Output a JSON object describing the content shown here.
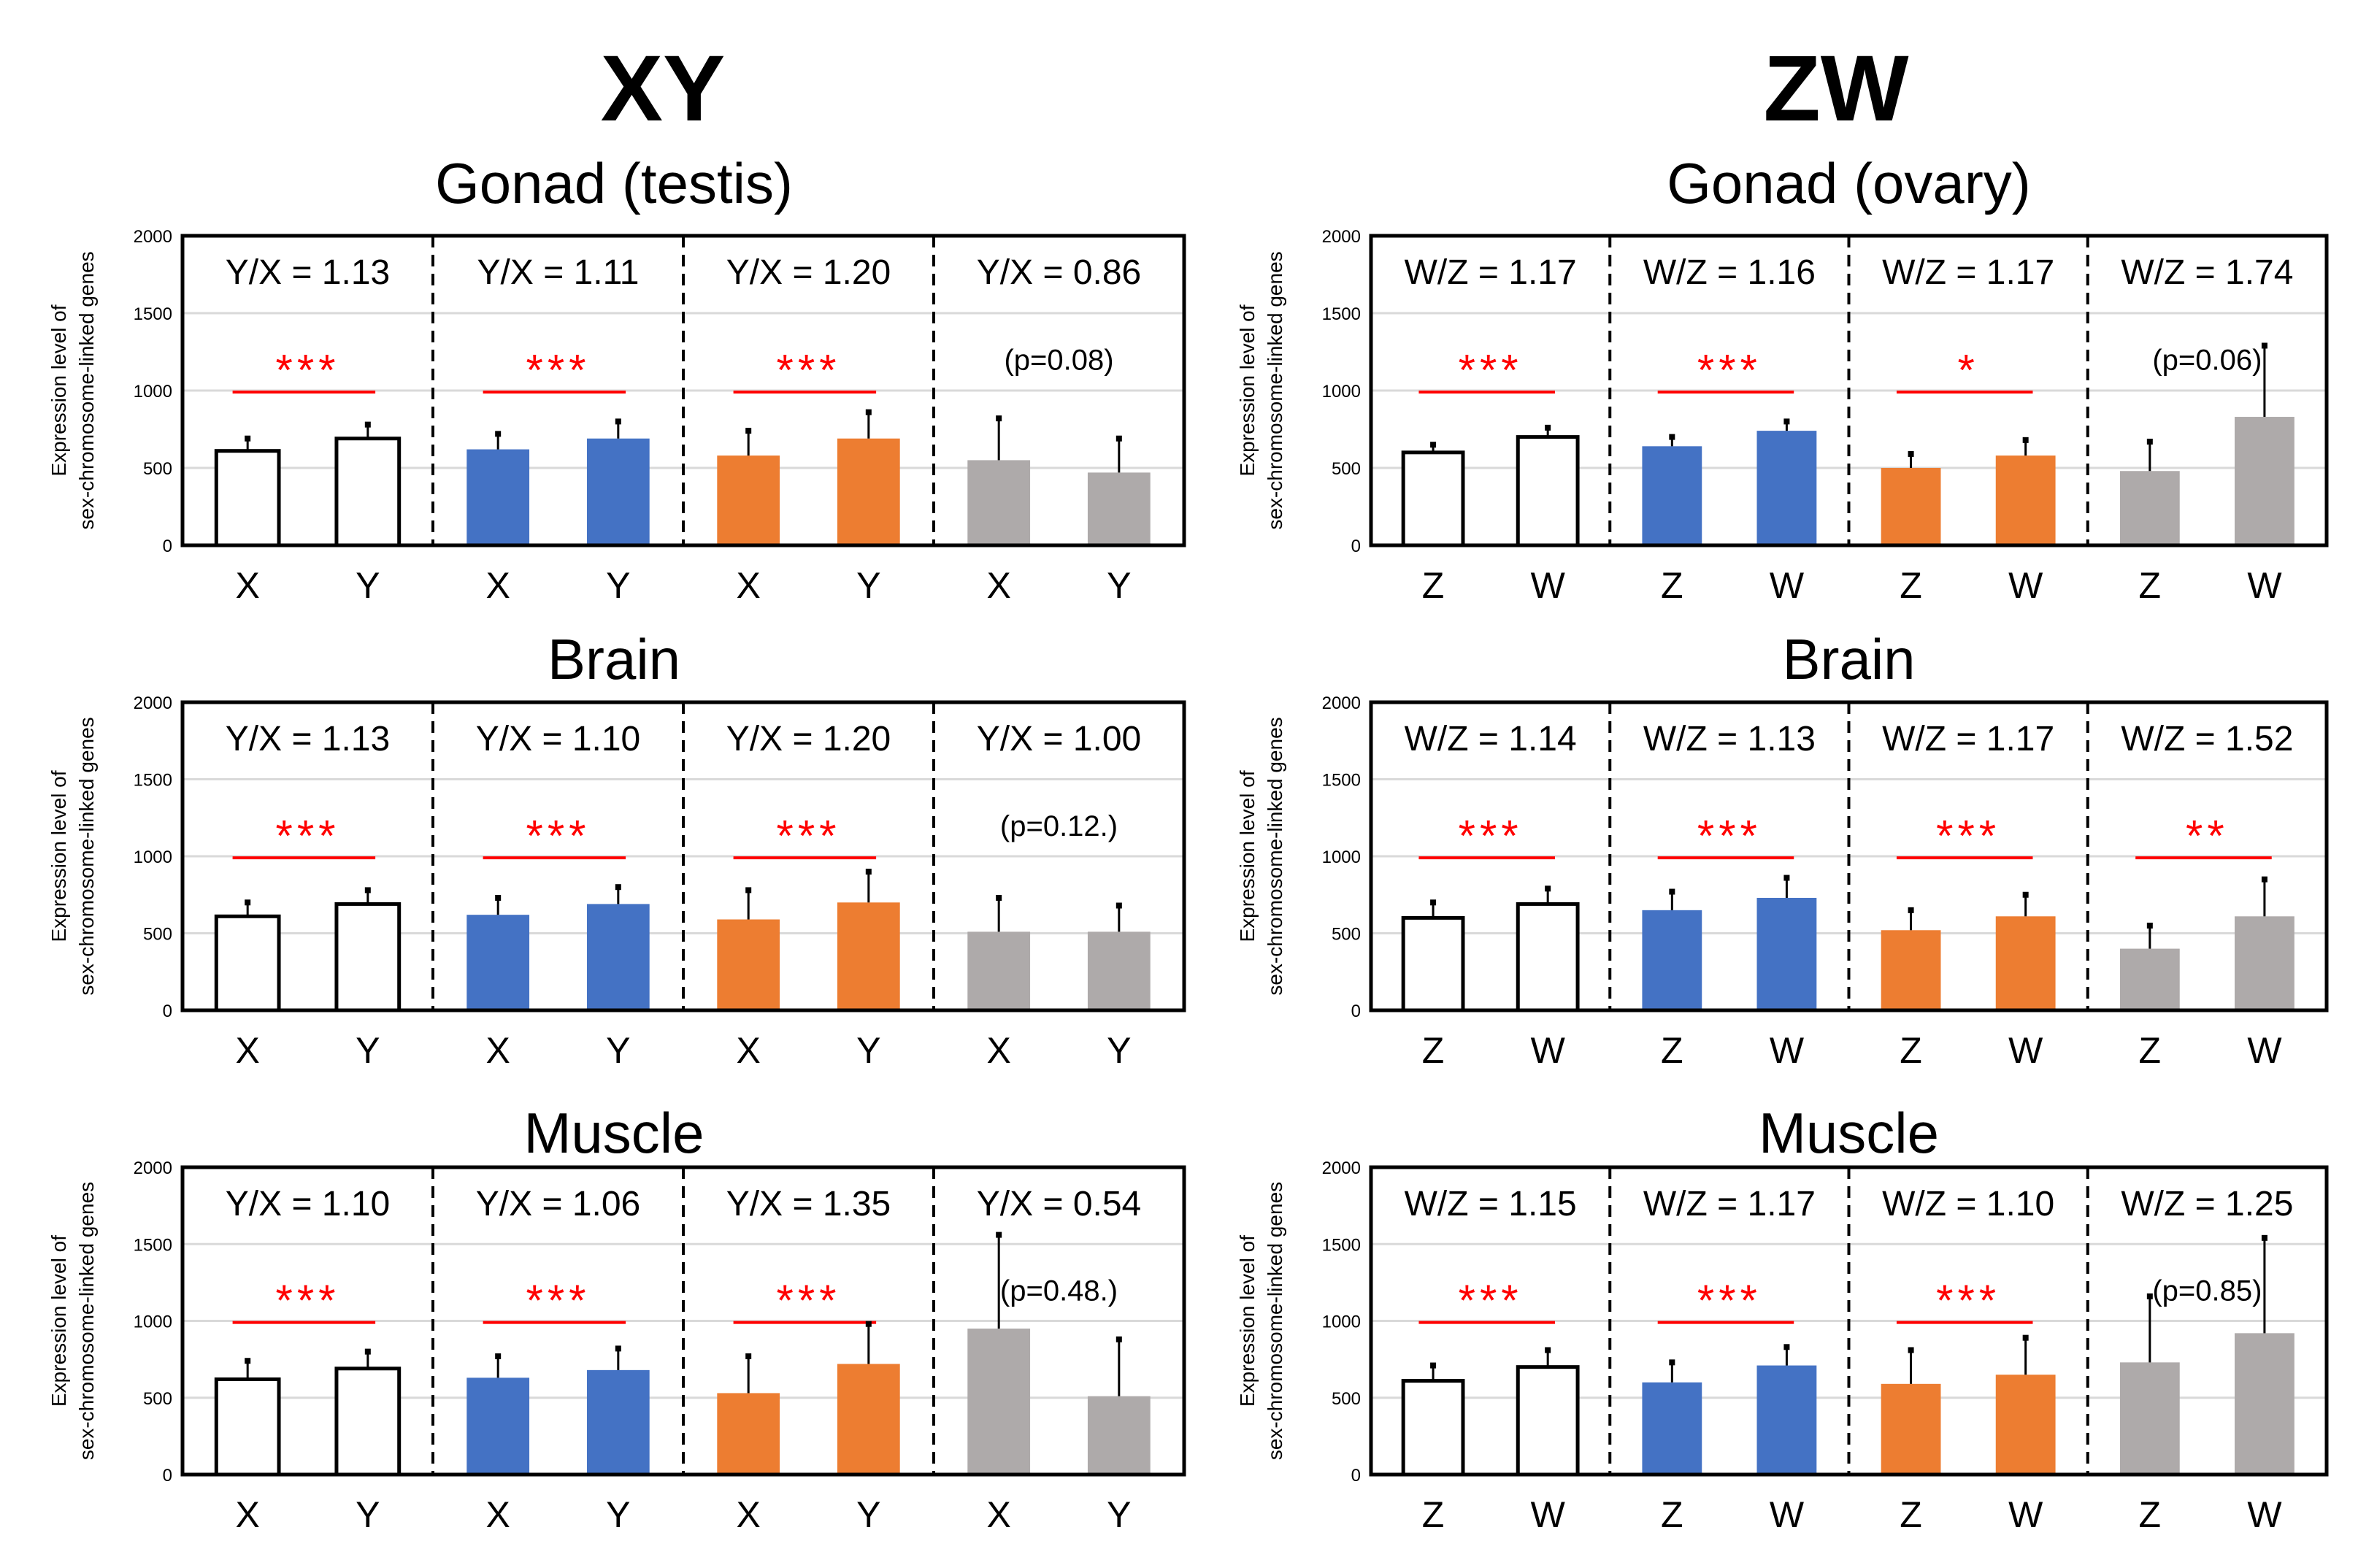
{
  "chart_data": {
    "type": "bar",
    "ylabel_line1": "Expression level of",
    "ylabel_line2": "sex-chromosome-linked genes",
    "ylim": [
      0,
      2000
    ],
    "yticks": [
      "0",
      "500",
      "1000",
      "1500",
      "2000"
    ],
    "grid": true,
    "colors": {
      "white": "#ffffff",
      "blue": "#4472c4",
      "orange": "#ed7d31",
      "gray": "#aeaaaa",
      "sig": "#ff0000"
    },
    "group_colors": [
      "white",
      "blue",
      "orange",
      "gray"
    ],
    "columns": [
      {
        "title": "XY",
        "categories": [
          "X",
          "Y"
        ],
        "panels": [
          {
            "title": "Gonad (testis)",
            "groups": [
              {
                "ratio": "Y/X = 1.13",
                "sig": "***",
                "values": [
                  610,
                  690
                ],
                "errors": [
                  80,
                  90
                ]
              },
              {
                "ratio": "Y/X = 1.11",
                "sig": "***",
                "values": [
                  620,
                  690
                ],
                "errors": [
                  100,
                  110
                ]
              },
              {
                "ratio": "Y/X = 1.20",
                "sig": "***",
                "values": [
                  580,
                  690
                ],
                "errors": [
                  160,
                  170
                ]
              },
              {
                "ratio": "Y/X = 0.86",
                "p": "(p=0.08)",
                "values": [
                  550,
                  470
                ],
                "errors": [
                  270,
                  220
                ]
              }
            ]
          },
          {
            "title": "Brain",
            "groups": [
              {
                "ratio": "Y/X = 1.13",
                "sig": "***",
                "values": [
                  610,
                  690
                ],
                "errors": [
                  90,
                  90
                ]
              },
              {
                "ratio": "Y/X = 1.10",
                "sig": "***",
                "values": [
                  620,
                  690
                ],
                "errors": [
                  110,
                  110
                ]
              },
              {
                "ratio": "Y/X = 1.20",
                "sig": "***",
                "values": [
                  590,
                  700
                ],
                "errors": [
                  190,
                  200
                ]
              },
              {
                "ratio": "Y/X = 1.00",
                "p": "(p=0.12.)",
                "values": [
                  510,
                  510
                ],
                "errors": [
                  220,
                  170
                ]
              }
            ]
          },
          {
            "title": "Muscle",
            "groups": [
              {
                "ratio": "Y/X = 1.10",
                "sig": "***",
                "values": [
                  620,
                  690
                ],
                "errors": [
                  120,
                  110
                ]
              },
              {
                "ratio": "Y/X = 1.06",
                "sig": "***",
                "values": [
                  630,
                  680
                ],
                "errors": [
                  140,
                  140
                ]
              },
              {
                "ratio": "Y/X = 1.35",
                "sig": "***",
                "values": [
                  530,
                  720
                ],
                "errors": [
                  240,
                  260
                ]
              },
              {
                "ratio": "Y/X = 0.54",
                "p": "(p=0.48.)",
                "values": [
                  950,
                  510
                ],
                "errors": [
                  610,
                  370
                ]
              }
            ]
          }
        ]
      },
      {
        "title": "ZW",
        "categories": [
          "Z",
          "W"
        ],
        "panels": [
          {
            "title": "Gonad (ovary)",
            "groups": [
              {
                "ratio": "W/Z = 1.17",
                "sig": "***",
                "values": [
                  600,
                  700
                ],
                "errors": [
                  50,
                  60
                ]
              },
              {
                "ratio": "W/Z = 1.16",
                "sig": "***",
                "values": [
                  640,
                  740
                ],
                "errors": [
                  60,
                  60
                ]
              },
              {
                "ratio": "W/Z = 1.17",
                "sig": "*",
                "values": [
                  500,
                  580
                ],
                "errors": [
                  90,
                  100
                ]
              },
              {
                "ratio": "W/Z = 1.74",
                "p": "(p=0.06)",
                "values": [
                  480,
                  830
                ],
                "errors": [
                  190,
                  460
                ]
              }
            ]
          },
          {
            "title": "Brain",
            "groups": [
              {
                "ratio": "W/Z = 1.14",
                "sig": "***",
                "values": [
                  600,
                  690
                ],
                "errors": [
                  100,
                  100
                ]
              },
              {
                "ratio": "W/Z = 1.13",
                "sig": "***",
                "values": [
                  650,
                  730
                ],
                "errors": [
                  120,
                  130
                ]
              },
              {
                "ratio": "W/Z = 1.17",
                "sig": "***",
                "values": [
                  520,
                  610
                ],
                "errors": [
                  130,
                  140
                ]
              },
              {
                "ratio": "W/Z = 1.52",
                "sig": "**",
                "values": [
                  400,
                  610
                ],
                "errors": [
                  150,
                  240
                ]
              }
            ]
          },
          {
            "title": "Muscle",
            "groups": [
              {
                "ratio": "W/Z = 1.15",
                "sig": "***",
                "values": [
                  610,
                  700
                ],
                "errors": [
                  100,
                  110
                ]
              },
              {
                "ratio": "W/Z = 1.17",
                "sig": "***",
                "values": [
                  600,
                  710
                ],
                "errors": [
                  130,
                  120
                ]
              },
              {
                "ratio": "W/Z = 1.10",
                "sig": "***",
                "values": [
                  590,
                  650
                ],
                "errors": [
                  220,
                  240
                ]
              },
              {
                "ratio": "W/Z = 1.25",
                "p": "(p=0.85)",
                "values": [
                  730,
                  920
                ],
                "errors": [
                  430,
                  620
                ]
              }
            ]
          }
        ]
      }
    ]
  }
}
